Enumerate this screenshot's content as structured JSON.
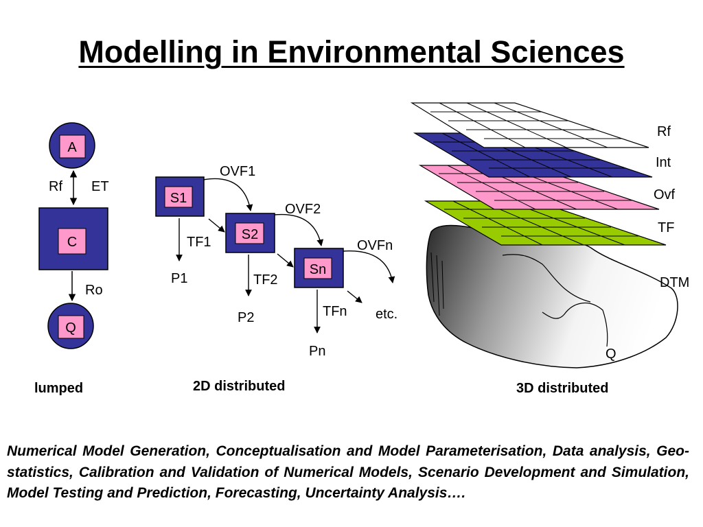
{
  "slide": {
    "title": "Modelling in Environmental Sciences",
    "description": "Numerical Model Generation, Conceptualisation and Model Parameterisation, Data analysis, Geo-statistics, Calibration and Validation of Numerical Models, Scenario Development and Simulation, Model Testing and Prediction, Forecasting, Uncertainty Analysis…."
  },
  "lumped": {
    "caption": "lumped",
    "node_top": "A",
    "node_mid": "C",
    "node_bottom": "Q",
    "flow_in": "Rf",
    "flow_out": "ET",
    "runoff": "Ro"
  },
  "distributed_2d": {
    "caption": "2D distributed",
    "cells": [
      "S1",
      "S2",
      "Sn"
    ],
    "overland_flows": [
      "OVF1",
      "OVF2",
      "OVFn"
    ],
    "through_flows": [
      "TF1",
      "TF2",
      "TFn"
    ],
    "percolation": [
      "P1",
      "P2",
      "Pn"
    ],
    "continuation": "etc."
  },
  "distributed_3d": {
    "caption": "3D distributed",
    "layers": [
      {
        "label": "Rf",
        "color": "#ffffff"
      },
      {
        "label": "Int",
        "color": "#33339a"
      },
      {
        "label": "Ovf",
        "color": "#ff99cc"
      },
      {
        "label": "TF",
        "color": "#99cc00"
      }
    ],
    "terrain_label": "DTM",
    "outlet_label": "Q"
  },
  "colors": {
    "box_fill": "#33339a",
    "label_fill": "#ff99cc",
    "grid_green": "#99cc00"
  }
}
